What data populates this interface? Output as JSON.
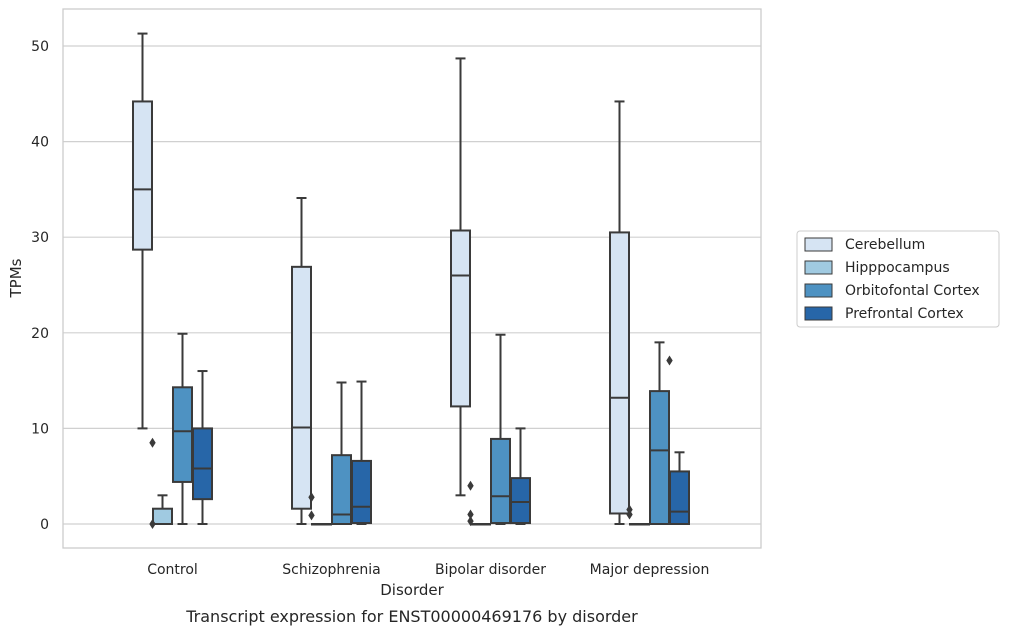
{
  "caption": "Transcript expression for ENST00000469176 by disorder",
  "chart_data": {
    "type": "box",
    "xlabel": "Disorder",
    "ylabel": "TPMs",
    "categories": [
      "Control",
      "Schizophrenia",
      "Bipolar disorder",
      "Major depression"
    ],
    "yticks": [
      0,
      10,
      20,
      30,
      40,
      50
    ],
    "ylim": [
      -2.5,
      54
    ],
    "grid": true,
    "legend_position": "right",
    "series": [
      {
        "name": "Cerebellum",
        "color": "#d6e4f3",
        "boxes": [
          {
            "whisker_low": 10,
            "q1": 28.7,
            "median": 35.0,
            "q3": 44.2,
            "whisker_high": 51.3,
            "outliers": []
          },
          {
            "whisker_low": 0,
            "q1": 1.6,
            "median": 10.1,
            "q3": 26.9,
            "whisker_high": 34.1,
            "outliers": []
          },
          {
            "whisker_low": 3,
            "q1": 12.3,
            "median": 26.0,
            "q3": 30.7,
            "whisker_high": 48.7,
            "outliers": []
          },
          {
            "whisker_low": 0,
            "q1": 1.1,
            "median": 13.2,
            "q3": 30.5,
            "whisker_high": 44.2,
            "outliers": []
          }
        ]
      },
      {
        "name": "Hipppocampus",
        "color": "#a0cae1",
        "boxes": [
          {
            "whisker_low": 0,
            "q1": 0,
            "median": 0,
            "q3": 1.6,
            "whisker_high": 3,
            "outliers": [
              0,
              8.5
            ]
          },
          {
            "whisker_low": 0,
            "q1": 0,
            "median": 0,
            "q3": 0,
            "whisker_high": 0,
            "outliers": [
              0.9,
              2.8
            ]
          },
          {
            "whisker_low": 0,
            "q1": 0,
            "median": 0,
            "q3": 0,
            "whisker_high": 0,
            "outliers": [
              0.3,
              1.0,
              4.0
            ]
          },
          {
            "whisker_low": 0,
            "q1": 0,
            "median": 0,
            "q3": 0,
            "whisker_high": 0,
            "outliers": [
              1.0,
              1.5
            ]
          }
        ]
      },
      {
        "name": "Orbitofontal Cortex",
        "color": "#4e92c2",
        "boxes": [
          {
            "whisker_low": 0,
            "q1": 4.4,
            "median": 9.7,
            "q3": 14.3,
            "whisker_high": 19.9,
            "outliers": []
          },
          {
            "whisker_low": 0,
            "q1": 0,
            "median": 1.0,
            "q3": 7.2,
            "whisker_high": 14.8,
            "outliers": []
          },
          {
            "whisker_low": 0,
            "q1": 0.1,
            "median": 2.9,
            "q3": 8.9,
            "whisker_high": 19.8,
            "outliers": []
          },
          {
            "whisker_low": 0,
            "q1": 0,
            "median": 7.7,
            "q3": 13.9,
            "whisker_high": 19.0,
            "outliers": []
          }
        ]
      },
      {
        "name": "Prefrontal Cortex",
        "color": "#2766a8",
        "boxes": [
          {
            "whisker_low": 0,
            "q1": 2.6,
            "median": 5.8,
            "q3": 10.0,
            "whisker_high": 16.0,
            "outliers": []
          },
          {
            "whisker_low": 0,
            "q1": 0.1,
            "median": 1.8,
            "q3": 6.6,
            "whisker_high": 14.9,
            "outliers": []
          },
          {
            "whisker_low": 0,
            "q1": 0.1,
            "median": 2.3,
            "q3": 4.8,
            "whisker_high": 10.0,
            "outliers": []
          },
          {
            "whisker_low": 0,
            "q1": 0,
            "median": 1.3,
            "q3": 5.5,
            "whisker_high": 7.5,
            "outliers": [
              17.1
            ]
          }
        ]
      }
    ]
  }
}
